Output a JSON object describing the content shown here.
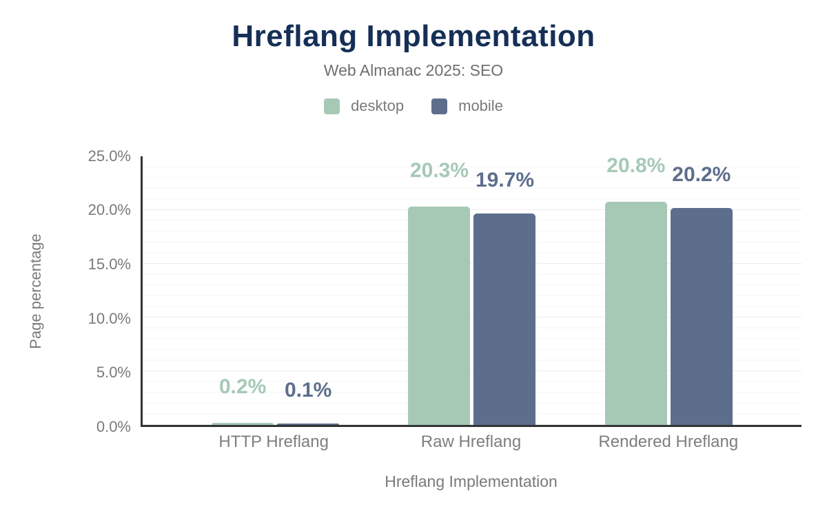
{
  "header": {
    "title": "Hreflang Implementation",
    "subtitle": "Web Almanac 2025: SEO"
  },
  "legend": [
    {
      "label": "desktop",
      "color": "#a6c9b6"
    },
    {
      "label": "mobile",
      "color": "#5d6e8c"
    }
  ],
  "colors": {
    "title_navy": "#152f56",
    "axis_line": "#333333",
    "muted_text": "#7a7a7a",
    "grid_minor": "#f6f6f6",
    "grid_major": "#ececec"
  },
  "chart_data": {
    "type": "bar",
    "title": "Hreflang Implementation",
    "subtitle": "Web Almanac 2025: SEO",
    "categories": [
      "HTTP Hreflang",
      "Raw Hreflang",
      "Rendered Hreflang"
    ],
    "series": [
      {
        "name": "desktop",
        "color": "#a6c9b6",
        "values": [
          0.2,
          20.3,
          20.8
        ],
        "display": [
          "0.2%",
          "20.3%",
          "20.8%"
        ]
      },
      {
        "name": "mobile",
        "color": "#5d6e8c",
        "values": [
          0.1,
          19.7,
          20.2
        ],
        "display": [
          "0.1%",
          "19.7%",
          "20.2%"
        ]
      }
    ],
    "xlabel": "Hreflang Implementation",
    "ylabel": "Page percentage",
    "ylim": [
      0,
      25
    ],
    "yticks": [
      "0.0%",
      "5.0%",
      "10.0%",
      "15.0%",
      "20.0%",
      "25.0%"
    ],
    "grid": "horizontal; faint minor line every 1%, slightly darker every 5%",
    "legend_position": "top center"
  }
}
